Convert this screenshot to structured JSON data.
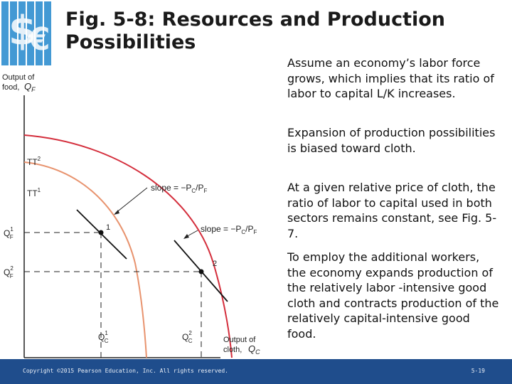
{
  "slide": {
    "title": "Fig. 5-8: Resources and Production Possibilities",
    "paragraphs": [
      "Assume an economy’s labor force grows, which implies that its ratio of labor to capital L/K increases.",
      "Expansion of production possibilities is biased toward cloth.",
      "At a given relative price of cloth, the ratio of labor to capital used in both sectors remains constant, see Fig. 5-7.",
      "To employ the additional workers, the economy expands production of the relatively labor -intensive good cloth and contracts production of the relatively capital-intensive good food."
    ],
    "footer_copyright": "Copyright ©2015 Pearson Education, Inc. All rights reserved.",
    "slide_number": "5-19"
  },
  "graph": {
    "y_axis_label_line1": "Output of",
    "y_axis_label_line2": "food,",
    "y_axis_var": "Q",
    "y_axis_sub": "F",
    "x_axis_label_line1": "Output of",
    "x_axis_label_line2": "cloth,",
    "x_axis_var": "Q",
    "x_axis_sub": "C",
    "curve_outer_label": "TT",
    "curve_outer_sup": "2",
    "curve_inner_label": "TT",
    "curve_inner_sup": "1",
    "point1_label": "1",
    "point2_label": "2",
    "slope_label_prefix": "slope = −P",
    "slope_label_mid": "/P",
    "slope_sub_c": "C",
    "slope_sub_f": "F",
    "qf1_var": "Q",
    "qf1_sup": "1",
    "qf1_sub": "F",
    "qf2_var": "Q",
    "qf2_sup": "2",
    "qf2_sub": "F",
    "qc1_var": "Q",
    "qc1_sup": "1",
    "qc1_sub": "C",
    "qc2_var": "Q",
    "qc2_sup": "2",
    "qc2_sub": "C",
    "colors": {
      "outer_curve": "#d42e3c",
      "inner_curve": "#e8936e",
      "axis": "#222222",
      "tangent": "#111111"
    }
  },
  "logo": {
    "icon": "dollar-euro-logo-icon",
    "color": "#2f8fd0"
  }
}
